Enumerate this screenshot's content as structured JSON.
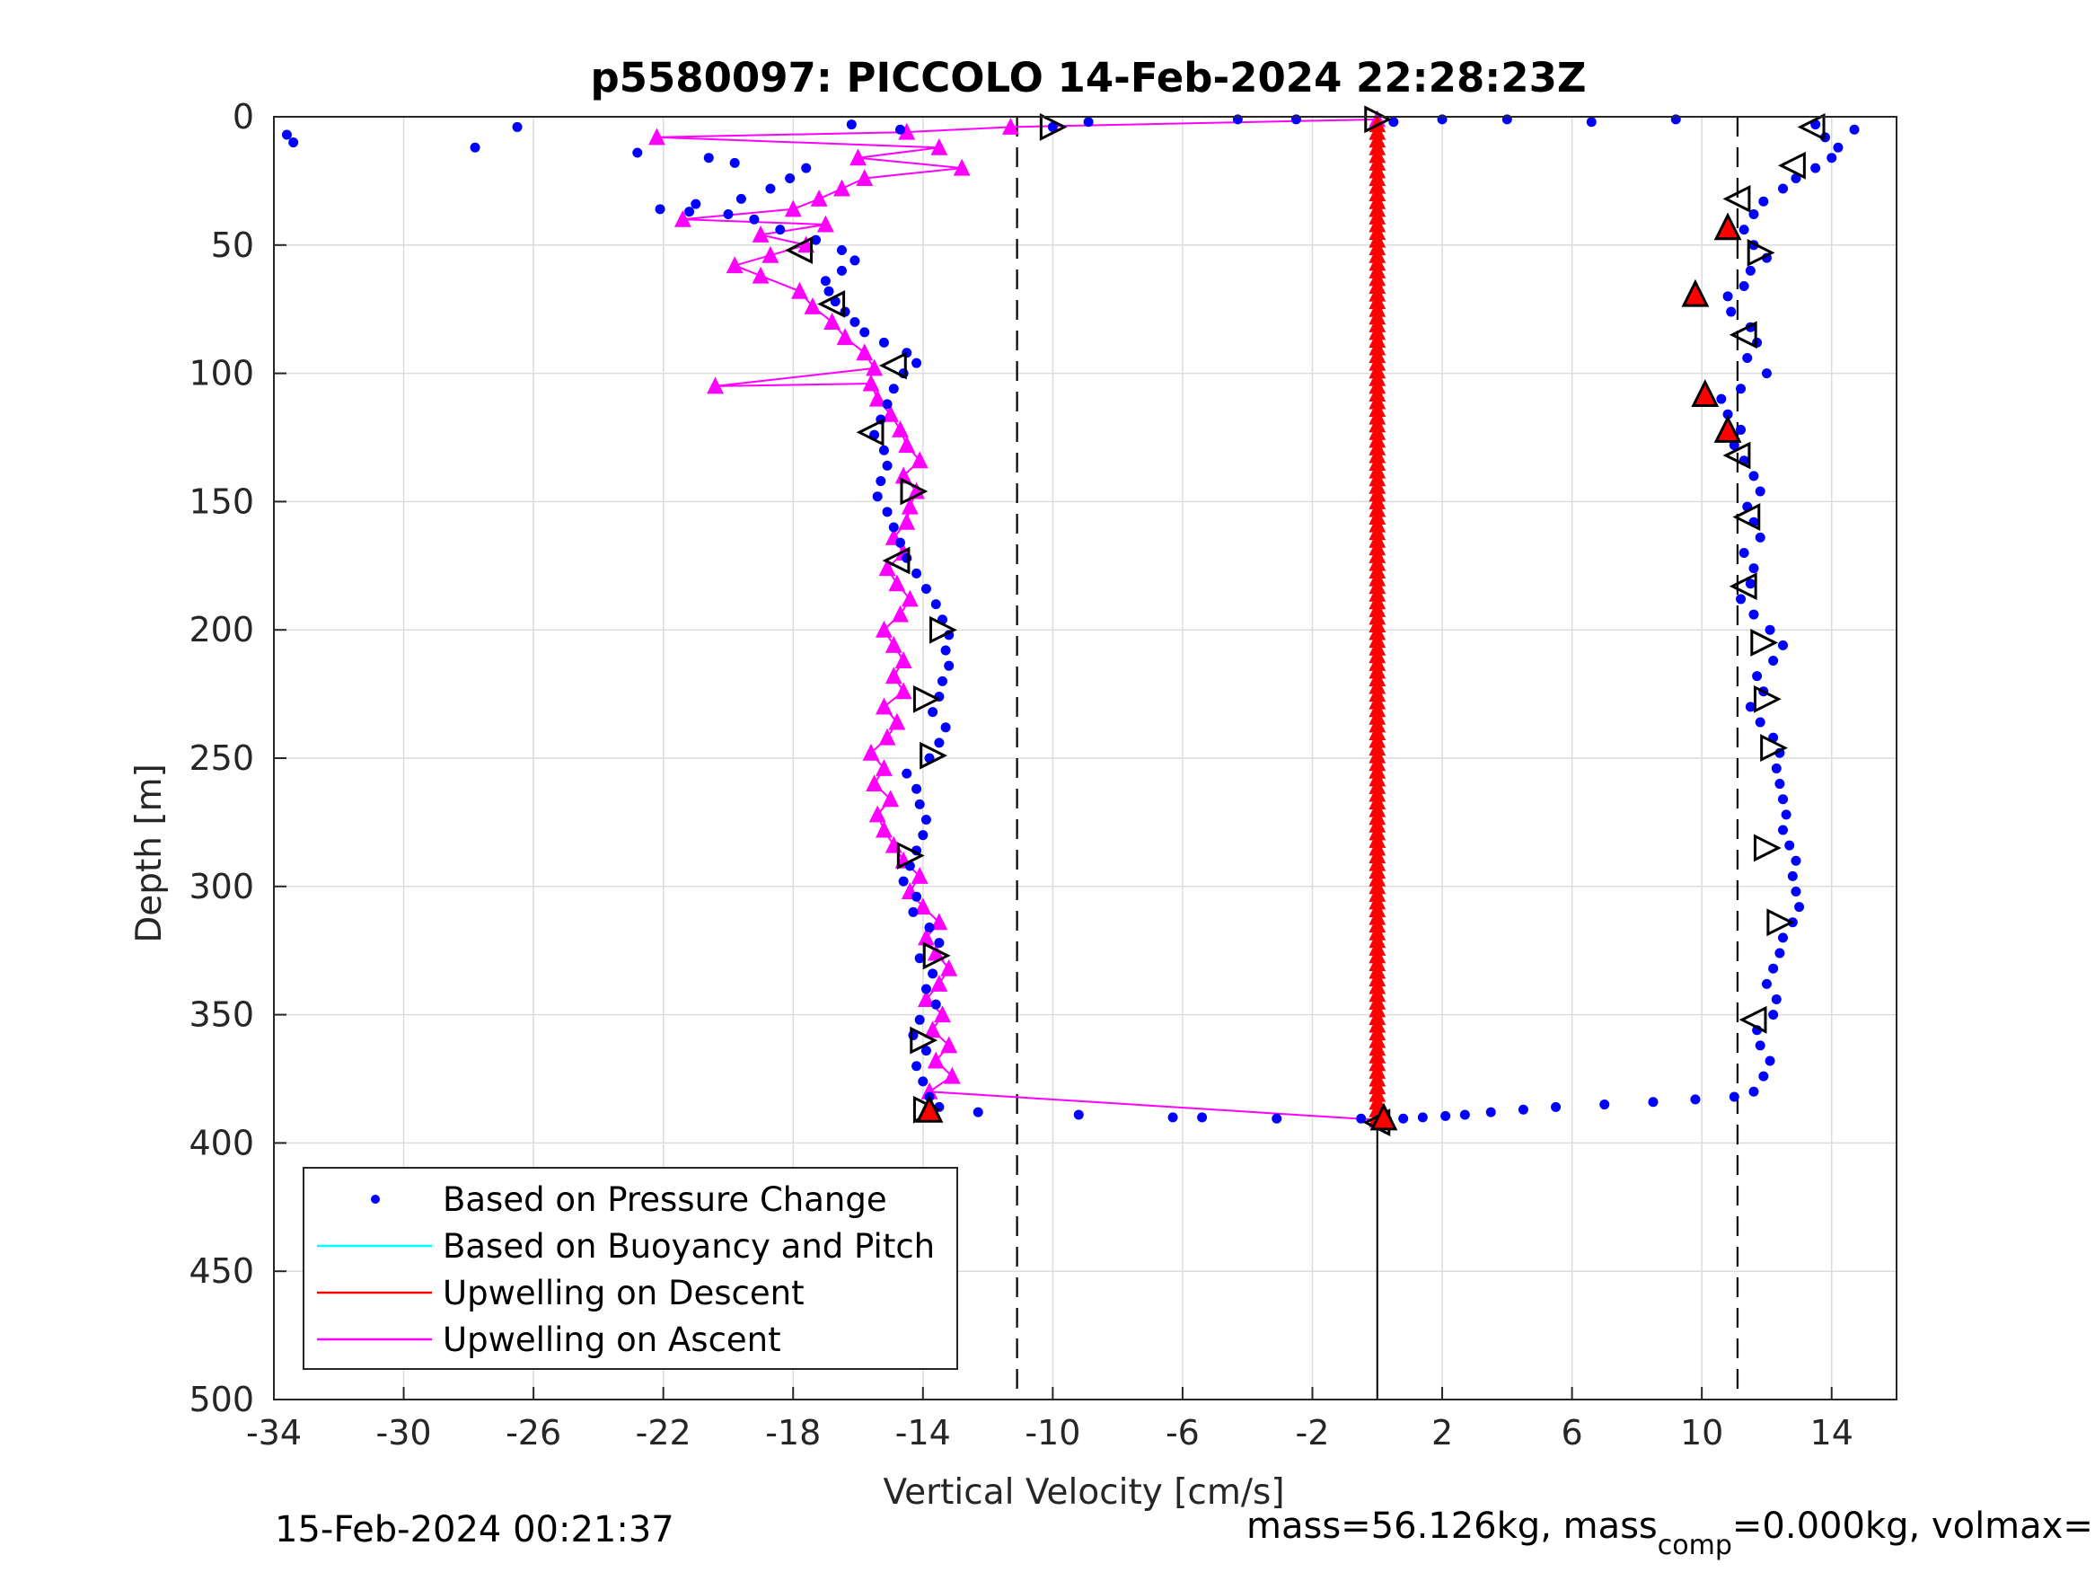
{
  "chart_data": {
    "type": "scatter",
    "title": "p5580097: PICCOLO 14-Feb-2024 22:28:23Z",
    "xlabel": "Vertical Velocity [cm/s]",
    "ylabel": "Depth [m]",
    "xlim": [
      -34,
      16
    ],
    "ylim": [
      0,
      500
    ],
    "y_reversed": true,
    "grid": true,
    "xticks": [
      -34,
      -30,
      -26,
      -22,
      -18,
      -14,
      -10,
      -6,
      -2,
      2,
      6,
      10,
      14
    ],
    "yticks": [
      0,
      50,
      100,
      150,
      200,
      250,
      300,
      350,
      400,
      450,
      500
    ],
    "reference_lines": {
      "dashed_x": [
        -11.1,
        11.1
      ],
      "solid_x": 0
    },
    "legend": {
      "placement": "bottom-left",
      "entries": [
        {
          "label": "Based on Pressure Change",
          "color": "#0000ff",
          "style": "dot"
        },
        {
          "label": "Based on Buoyancy and Pitch",
          "color": "#00ffff",
          "style": "line"
        },
        {
          "label": "Upwelling on Descent",
          "color": "#ff0000",
          "style": "line"
        },
        {
          "label": "Upwelling on Ascent",
          "color": "#ff00ff",
          "style": "line"
        }
      ]
    },
    "colors": {
      "pressure": "#0000ff",
      "buoyancy": "#00ffff",
      "descent": "#ff0000",
      "ascent": "#ff00ff"
    },
    "series": [
      {
        "name": "Based on Pressure Change",
        "segment": "descent",
        "points": [
          [
            0.5,
            2
          ],
          [
            2,
            1
          ],
          [
            4,
            1
          ],
          [
            6.6,
            2
          ],
          [
            9.2,
            1
          ],
          [
            13.5,
            3
          ],
          [
            14.7,
            5
          ],
          [
            13.8,
            8
          ],
          [
            14.2,
            12
          ],
          [
            14,
            16
          ],
          [
            13.5,
            20
          ],
          [
            12.9,
            24
          ],
          [
            12.5,
            28
          ],
          [
            11.9,
            33
          ],
          [
            11.6,
            38
          ],
          [
            11.3,
            44
          ],
          [
            11.6,
            50
          ],
          [
            12,
            55
          ],
          [
            11.5,
            60
          ],
          [
            11.3,
            66
          ],
          [
            10.8,
            70
          ],
          [
            10.9,
            76
          ],
          [
            11.5,
            82
          ],
          [
            11.7,
            88
          ],
          [
            11.4,
            94
          ],
          [
            12,
            100
          ],
          [
            11.2,
            106
          ],
          [
            10.6,
            110
          ],
          [
            10.8,
            116
          ],
          [
            11.2,
            122
          ],
          [
            11,
            128
          ],
          [
            11.3,
            134
          ],
          [
            11.6,
            140
          ],
          [
            11.8,
            146
          ],
          [
            11.4,
            152
          ],
          [
            11.6,
            158
          ],
          [
            11.8,
            164
          ],
          [
            11.3,
            170
          ],
          [
            11.6,
            176
          ],
          [
            11.5,
            182
          ],
          [
            11.2,
            188
          ],
          [
            11.6,
            194
          ],
          [
            12.1,
            200
          ],
          [
            12.5,
            206
          ],
          [
            12.2,
            212
          ],
          [
            11.7,
            218
          ],
          [
            11.9,
            224
          ],
          [
            11.5,
            230
          ],
          [
            11.8,
            236
          ],
          [
            12.2,
            242
          ],
          [
            12.4,
            248
          ],
          [
            12.3,
            254
          ],
          [
            12.4,
            260
          ],
          [
            12.5,
            266
          ],
          [
            12.6,
            272
          ],
          [
            12.5,
            278
          ],
          [
            12.7,
            284
          ],
          [
            12.9,
            290
          ],
          [
            12.8,
            296
          ],
          [
            12.9,
            302
          ],
          [
            13,
            308
          ],
          [
            12.8,
            314
          ],
          [
            12.5,
            320
          ],
          [
            12.4,
            326
          ],
          [
            12.2,
            332
          ],
          [
            12,
            338
          ],
          [
            12.3,
            344
          ],
          [
            12.2,
            350
          ],
          [
            11.7,
            356
          ],
          [
            11.8,
            362
          ],
          [
            12.1,
            368
          ],
          [
            11.9,
            374
          ],
          [
            11.6,
            380
          ],
          [
            11,
            382
          ],
          [
            9.8,
            383
          ],
          [
            8.5,
            384
          ],
          [
            7,
            385
          ],
          [
            5.5,
            386
          ],
          [
            4.5,
            387
          ],
          [
            3.5,
            388
          ],
          [
            2.7,
            389
          ],
          [
            2.1,
            389.5
          ],
          [
            1.4,
            390
          ],
          [
            0.8,
            390.5
          ],
          [
            0.3,
            391
          ]
        ]
      },
      {
        "name": "Based on Pressure Change",
        "segment": "ascent",
        "points": [
          [
            0.3,
            391
          ],
          [
            -0.5,
            390.5
          ],
          [
            -3.1,
            390.5
          ],
          [
            -5.4,
            390
          ],
          [
            -6.3,
            390
          ],
          [
            -9.2,
            389
          ],
          [
            -12.3,
            388
          ],
          [
            -13.5,
            386
          ],
          [
            -13.8,
            382
          ],
          [
            -14,
            376
          ],
          [
            -14.2,
            370
          ],
          [
            -13.9,
            364
          ],
          [
            -14.3,
            358
          ],
          [
            -14.1,
            352
          ],
          [
            -13.6,
            346
          ],
          [
            -13.9,
            340
          ],
          [
            -13.7,
            334
          ],
          [
            -14.1,
            328
          ],
          [
            -13.5,
            322
          ],
          [
            -13.8,
            316
          ],
          [
            -14.3,
            310
          ],
          [
            -14.2,
            304
          ],
          [
            -14.6,
            298
          ],
          [
            -14.4,
            292
          ],
          [
            -14.2,
            286
          ],
          [
            -14,
            280
          ],
          [
            -13.9,
            274
          ],
          [
            -14.1,
            268
          ],
          [
            -14.2,
            262
          ],
          [
            -14.5,
            256
          ],
          [
            -13.8,
            250
          ],
          [
            -13.5,
            244
          ],
          [
            -13.3,
            238
          ],
          [
            -13.7,
            232
          ],
          [
            -13.5,
            226
          ],
          [
            -13.4,
            220
          ],
          [
            -13.2,
            214
          ],
          [
            -13.3,
            208
          ],
          [
            -13.2,
            202
          ],
          [
            -13.4,
            196
          ],
          [
            -13.6,
            190
          ],
          [
            -13.9,
            184
          ],
          [
            -14.2,
            178
          ],
          [
            -14.5,
            172
          ],
          [
            -14.7,
            166
          ],
          [
            -14.9,
            160
          ],
          [
            -15.1,
            154
          ],
          [
            -15.4,
            148
          ],
          [
            -15.3,
            142
          ],
          [
            -15.1,
            136
          ],
          [
            -15.2,
            130
          ],
          [
            -15.5,
            124
          ],
          [
            -15.3,
            118
          ],
          [
            -15.1,
            112
          ],
          [
            -14.9,
            106
          ],
          [
            -14.6,
            100
          ],
          [
            -14.2,
            96
          ],
          [
            -14.5,
            92
          ],
          [
            -15.2,
            88
          ],
          [
            -15.8,
            84
          ],
          [
            -16.1,
            80
          ],
          [
            -16.4,
            76
          ],
          [
            -16.7,
            72
          ],
          [
            -16.9,
            68
          ],
          [
            -17,
            64
          ],
          [
            -16.5,
            60
          ],
          [
            -16.1,
            56
          ],
          [
            -16.5,
            52
          ],
          [
            -17.3,
            48
          ],
          [
            -18.4,
            44
          ],
          [
            -19.2,
            40
          ],
          [
            -20,
            38
          ],
          [
            -21.2,
            37
          ],
          [
            -22.1,
            36
          ],
          [
            -21,
            34
          ],
          [
            -19.6,
            32
          ],
          [
            -18.7,
            28
          ],
          [
            -18.1,
            24
          ],
          [
            -17.6,
            20
          ],
          [
            -19.8,
            18
          ],
          [
            -20.6,
            16
          ],
          [
            -22.8,
            14
          ],
          [
            -27.8,
            12
          ],
          [
            -33.4,
            10
          ],
          [
            -33.6,
            7
          ],
          [
            -26.5,
            4
          ],
          [
            -16.2,
            3
          ],
          [
            -14.7,
            5
          ],
          [
            -10,
            4
          ],
          [
            -8.9,
            2
          ],
          [
            -4.3,
            1
          ],
          [
            -2.5,
            1
          ]
        ]
      },
      {
        "name": "Upwelling on Descent",
        "points": [
          [
            0,
            2
          ],
          [
            0,
            100
          ],
          [
            0,
            200
          ],
          [
            0,
            300
          ],
          [
            0,
            382
          ],
          [
            0,
            391
          ]
        ]
      },
      {
        "name": "Upwelling on Ascent",
        "points": [
          [
            0,
            391
          ],
          [
            -13.8,
            380
          ],
          [
            -13.1,
            374
          ],
          [
            -13.6,
            368
          ],
          [
            -13.2,
            362
          ],
          [
            -13.7,
            356
          ],
          [
            -13.4,
            350
          ],
          [
            -13.9,
            344
          ],
          [
            -13.5,
            338
          ],
          [
            -13.2,
            332
          ],
          [
            -13.6,
            326
          ],
          [
            -13.9,
            320
          ],
          [
            -13.5,
            314
          ],
          [
            -14,
            308
          ],
          [
            -14.4,
            302
          ],
          [
            -14.1,
            296
          ],
          [
            -14.6,
            290
          ],
          [
            -14.9,
            284
          ],
          [
            -15.2,
            278
          ],
          [
            -15.4,
            272
          ],
          [
            -15,
            266
          ],
          [
            -15.5,
            260
          ],
          [
            -15.2,
            254
          ],
          [
            -15.6,
            248
          ],
          [
            -15.1,
            242
          ],
          [
            -14.8,
            236
          ],
          [
            -15.2,
            230
          ],
          [
            -14.6,
            224
          ],
          [
            -14.9,
            218
          ],
          [
            -14.6,
            212
          ],
          [
            -14.9,
            206
          ],
          [
            -15.2,
            200
          ],
          [
            -14.7,
            194
          ],
          [
            -14.4,
            188
          ],
          [
            -14.8,
            182
          ],
          [
            -15.1,
            176
          ],
          [
            -14.6,
            170
          ],
          [
            -14.9,
            164
          ],
          [
            -14.5,
            158
          ],
          [
            -14.4,
            152
          ],
          [
            -14.2,
            146
          ],
          [
            -14.6,
            140
          ],
          [
            -14.1,
            134
          ],
          [
            -14.5,
            128
          ],
          [
            -14.7,
            122
          ],
          [
            -15,
            116
          ],
          [
            -15.4,
            110
          ],
          [
            -15.6,
            104
          ],
          [
            -20.4,
            105
          ],
          [
            -15.5,
            98
          ],
          [
            -15.8,
            92
          ],
          [
            -16.4,
            86
          ],
          [
            -16.8,
            80
          ],
          [
            -17.4,
            74
          ],
          [
            -17.8,
            68
          ],
          [
            -19,
            62
          ],
          [
            -19.8,
            58
          ],
          [
            -18.7,
            54
          ],
          [
            -17.6,
            50
          ],
          [
            -19,
            46
          ],
          [
            -17,
            42
          ],
          [
            -21.4,
            40
          ],
          [
            -18,
            36
          ],
          [
            -17.2,
            32
          ],
          [
            -16.5,
            28
          ],
          [
            -15.8,
            24
          ],
          [
            -12.8,
            20
          ],
          [
            -16,
            16
          ],
          [
            -13.5,
            12
          ],
          [
            -22.2,
            8
          ],
          [
            -14.5,
            6
          ],
          [
            -11.3,
            4
          ],
          [
            0,
            1
          ]
        ]
      }
    ],
    "markers": {
      "descent_hollow": [
        [
          13.4,
          4
        ],
        [
          12.8,
          19
        ],
        [
          11.1,
          32
        ],
        [
          11.8,
          53
        ],
        [
          11.3,
          85
        ],
        [
          11.1,
          132
        ],
        [
          11.4,
          156
        ],
        [
          11.3,
          183
        ],
        [
          11.9,
          205
        ],
        [
          12,
          227
        ],
        [
          12.2,
          246
        ],
        [
          12,
          285
        ],
        [
          12.4,
          314
        ],
        [
          11.6,
          352
        ],
        [
          0,
          392
        ]
      ],
      "descent_red": [
        [
          10.8,
          43
        ],
        [
          9.8,
          69
        ],
        [
          10.1,
          108
        ],
        [
          10.8,
          122
        ],
        [
          0.2,
          390
        ]
      ],
      "ascent_hollow": [
        [
          -10,
          4
        ],
        [
          -17.8,
          52
        ],
        [
          -16.8,
          73
        ],
        [
          -14.9,
          97
        ],
        [
          -15.6,
          123
        ],
        [
          -14.3,
          146
        ],
        [
          -14.8,
          173
        ],
        [
          -13.4,
          200
        ],
        [
          -13.9,
          227
        ],
        [
          -13.7,
          249
        ],
        [
          -14.4,
          288
        ],
        [
          -13.6,
          327
        ],
        [
          -14,
          360
        ],
        [
          -13.9,
          387
        ],
        [
          0,
          1
        ]
      ],
      "ascent_red": [
        [
          -13.8,
          387
        ]
      ]
    },
    "footer": {
      "left": "15-Feb-2024 00:21:37",
      "right_main": "mass=56.126kg, mass",
      "right_sub": "comp",
      "right_tail": "=0.000kg, volmax="
    }
  }
}
